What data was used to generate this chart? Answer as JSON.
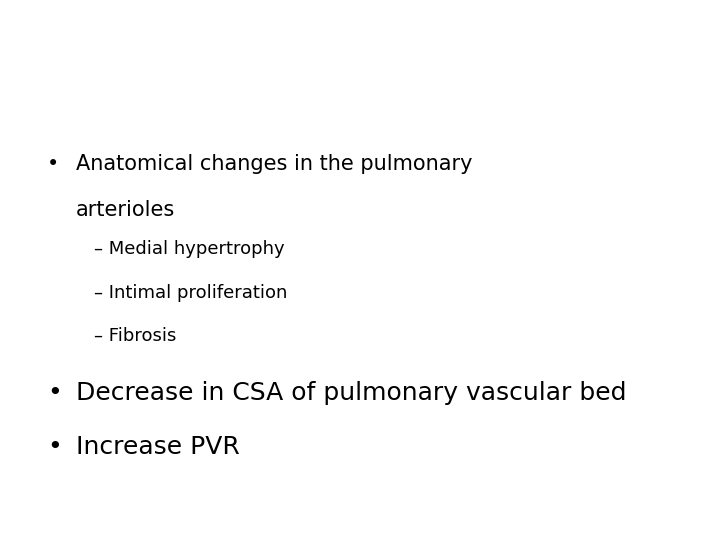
{
  "background_color": "#ffffff",
  "text_color": "#000000",
  "bullet1_line1": "Anatomical changes in the pulmonary",
  "bullet1_line2": "arterioles",
  "sub1": "– Medial hypertrophy",
  "sub2": "– Intimal proliferation",
  "sub3": "– Fibrosis",
  "bullet2": "Decrease in CSA of pulmonary vascular bed",
  "bullet3": "Increase PVR",
  "bullet_symbol": "•",
  "bullet1_fontsize": 15,
  "sub_fontsize": 13,
  "bullet23_fontsize": 18,
  "figsize": [
    7.2,
    5.4
  ],
  "dpi": 100
}
